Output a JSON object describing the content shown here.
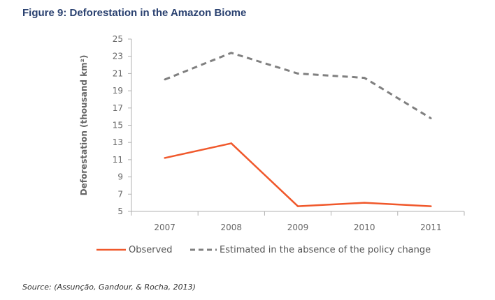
{
  "figure": {
    "title": "Figure 9: Deforestation in the Amazon Biome",
    "source": "Source: (Assunção, Gandour, & Rocha, 2013)"
  },
  "colors": {
    "title": "#2a4170",
    "observed": "#f0582b",
    "estimated": "#808080",
    "axis": "#b0b0b0",
    "tick_text": "#666666"
  },
  "chart_data": {
    "type": "line",
    "title": "",
    "ylabel": "Deforestation (thousand km²)",
    "xlabel": "",
    "categories": [
      "2007",
      "2008",
      "2009",
      "2010",
      "2011"
    ],
    "ylim": [
      5,
      25
    ],
    "yticks": [
      5,
      7,
      9,
      11,
      13,
      15,
      17,
      19,
      21,
      23,
      25
    ],
    "grid": false,
    "legend_position": "bottom",
    "series": [
      {
        "name": "Observed",
        "style": "solid",
        "values": [
          11.2,
          12.9,
          5.6,
          6.0,
          5.6
        ]
      },
      {
        "name": "Estimated in the absence of the policy change",
        "style": "dashed",
        "values": [
          20.3,
          23.4,
          21.0,
          20.5,
          15.8
        ]
      }
    ]
  }
}
